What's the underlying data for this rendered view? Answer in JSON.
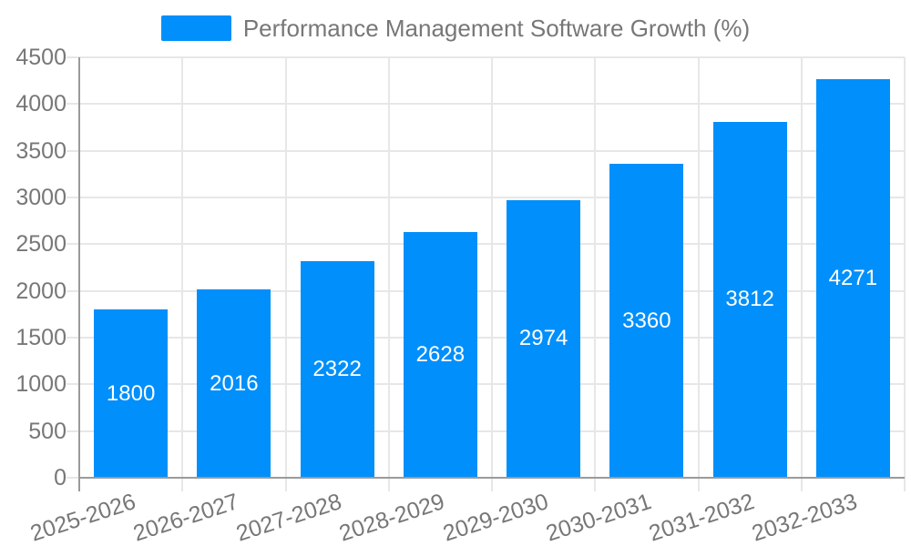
{
  "legend": {
    "label": "Performance Management Software Growth (%)"
  },
  "style": {
    "bar_color": "#008FFB",
    "grid_color": "#e7e7e7",
    "axis_color": "#9a9a9a",
    "label_color": "#777777",
    "value_label_color": "#ffffff",
    "background": "#ffffff"
  },
  "chart_data": {
    "type": "bar",
    "title": "Performance Management Software Growth (%)",
    "series_name": "Performance Management Software Growth (%)",
    "categories": [
      "2025-2026",
      "2026-2027",
      "2027-2028",
      "2028-2029",
      "2029-2030",
      "2030-2031",
      "2031-2032",
      "2032-2033"
    ],
    "values": [
      1800,
      2016,
      2322,
      2628,
      2974,
      3360,
      3812,
      4271
    ],
    "value_labels": [
      "1800",
      "2016",
      "2322",
      "2628",
      "2974",
      "3360",
      "3812",
      "4271"
    ],
    "xlabel": "",
    "ylabel": "",
    "ylim": [
      0,
      4500
    ],
    "ytick_step": 500,
    "yticks": [
      0,
      500,
      1000,
      1500,
      2000,
      2500,
      3000,
      3500,
      4000,
      4500
    ],
    "grid": true,
    "legend_position": "top",
    "x_label_rotation_deg": -18
  }
}
